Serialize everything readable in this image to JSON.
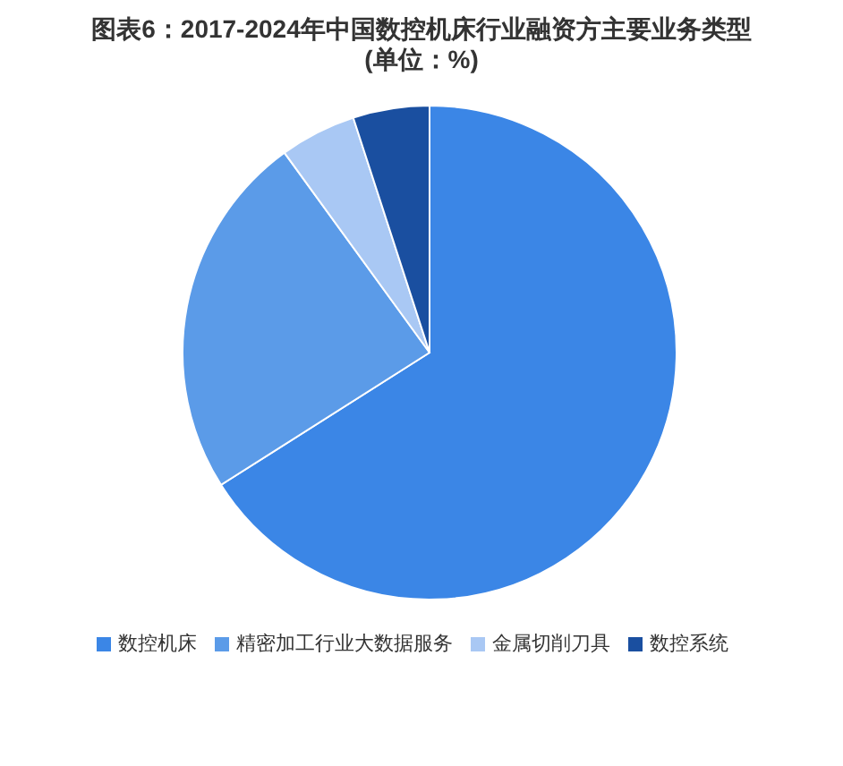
{
  "chart_data": {
    "type": "pie",
    "title": "图表6：2017-2024年中国数控机床行业融资方主要业务类型",
    "subtitle": "(单位：%)",
    "categories": [
      "数控机床",
      "精密加工行业大数据服务",
      "金属切削刀具",
      "数控系统"
    ],
    "values": [
      66,
      24,
      5,
      5
    ],
    "colors": [
      "#3b86e6",
      "#5b9be8",
      "#a9c8f4",
      "#1a4fa0"
    ],
    "legend": "bottom"
  }
}
